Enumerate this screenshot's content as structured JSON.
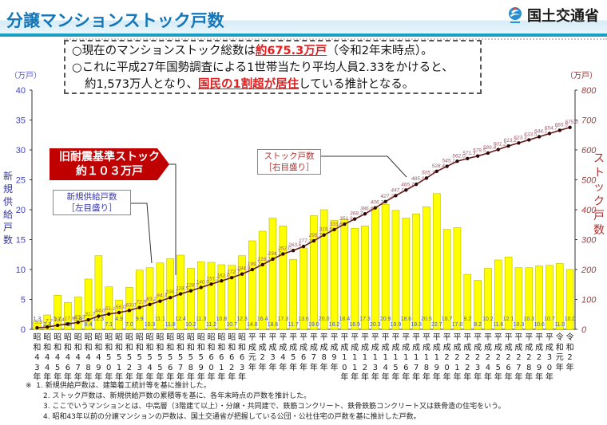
{
  "header": {
    "title": "分譲マンションストック戸数",
    "ministry": "国土交通省"
  },
  "summary": {
    "line1_prefix": "○現在のマンションストック総数は",
    "line1_highlight": "約675.3万戸",
    "line1_suffix": "（令和2年末時点）。",
    "line2": "○これに平成27年国勢調査による1世帯当たり平均人員2.33をかけると、",
    "line3_prefix": "約1,573万人となり、",
    "line3_highlight": "国民の1割超が居住",
    "line3_suffix": "している推計となる。"
  },
  "annotations": {
    "old_standard_line1": "旧耐震基準ストック",
    "old_standard_line2": "約１０３万戸",
    "new_supply_line1": "新規供給戸数",
    "new_supply_line2": "［左目盛り］",
    "stock_line1": "ストック戸数",
    "stock_line2": "［右目盛り］"
  },
  "axes": {
    "left_unit": "（万戸）",
    "right_unit": "（万戸）",
    "left_label": "新規供給戸数",
    "right_label": "ストック戸数",
    "left_ticks": [
      "0",
      "5",
      "10",
      "15",
      "20",
      "25",
      "30",
      "35",
      "40"
    ],
    "right_ticks": [
      "0",
      "100",
      "200",
      "300",
      "400",
      "500",
      "600",
      "700",
      "800"
    ]
  },
  "notes": {
    "mark": "※",
    "n1": "1. 新規供給戸数は、建築着工統計等を基に推計した。",
    "n2": "2. ストック戸数は、新規供給戸数の累積等を基に、各年末時点の戸数を推計した。",
    "n3": "3. ここでいうマンションとは、中高層（3階建て以上）・分譲・共同建で、鉄筋コンクリート、鉄骨鉄筋コンクリート又は鉄骨造の住宅をいう。",
    "n4": "4. 昭和43年以前の分譲マンションの戸数は、国土交通省が把握している公団・公社住宅の戸数を基に推計した戸数。"
  },
  "colors": {
    "title": "#1576b8",
    "bar": "#ffff00",
    "bar_border": "#b8b800",
    "stock_line": "#6b1c1c",
    "highlight_red": "#e02020",
    "old_standard_box": "#c00000"
  },
  "chart_data": {
    "type": "bar+line",
    "title": "分譲マンションストック戸数",
    "xlabel": "",
    "ylabel": "新規供給戸数（万戸）",
    "y2label": "ストック戸数（万戸）",
    "ylim": [
      0,
      40
    ],
    "y2lim": [
      0,
      800
    ],
    "grid": false,
    "categories": [
      [
        "昭",
        "和",
        "4",
        "3",
        "年"
      ],
      [
        "昭",
        "和",
        "4",
        "4",
        "年"
      ],
      [
        "昭",
        "和",
        "4",
        "5",
        "年"
      ],
      [
        "昭",
        "和",
        "4",
        "6",
        "年"
      ],
      [
        "昭",
        "和",
        "4",
        "7",
        "年"
      ],
      [
        "昭",
        "和",
        "4",
        "8",
        "年"
      ],
      [
        "昭",
        "和",
        "4",
        "9",
        "年"
      ],
      [
        "昭",
        "和",
        "5",
        "0",
        "年"
      ],
      [
        "昭",
        "和",
        "5",
        "1",
        "年"
      ],
      [
        "昭",
        "和",
        "5",
        "2",
        "年"
      ],
      [
        "昭",
        "和",
        "5",
        "3",
        "年"
      ],
      [
        "昭",
        "和",
        "5",
        "4",
        "年"
      ],
      [
        "昭",
        "和",
        "5",
        "5",
        "年"
      ],
      [
        "昭",
        "和",
        "5",
        "6",
        "年"
      ],
      [
        "昭",
        "和",
        "5",
        "7",
        "年"
      ],
      [
        "昭",
        "和",
        "5",
        "8",
        "年"
      ],
      [
        "昭",
        "和",
        "5",
        "9",
        "年"
      ],
      [
        "昭",
        "和",
        "6",
        "0",
        "年"
      ],
      [
        "昭",
        "和",
        "6",
        "1",
        "年"
      ],
      [
        "昭",
        "和",
        "6",
        "2",
        "年"
      ],
      [
        "昭",
        "和",
        "6",
        "3",
        "年"
      ],
      [
        "平",
        "成",
        "元",
        "年",
        ""
      ],
      [
        "平",
        "成",
        "2",
        "年",
        ""
      ],
      [
        "平",
        "成",
        "3",
        "年",
        ""
      ],
      [
        "平",
        "成",
        "4",
        "年",
        ""
      ],
      [
        "平",
        "成",
        "5",
        "年",
        ""
      ],
      [
        "平",
        "成",
        "6",
        "年",
        ""
      ],
      [
        "平",
        "成",
        "7",
        "年",
        ""
      ],
      [
        "平",
        "成",
        "8",
        "年",
        ""
      ],
      [
        "平",
        "成",
        "9",
        "年",
        ""
      ],
      [
        "平",
        "成",
        "1",
        "0",
        "年"
      ],
      [
        "平",
        "成",
        "1",
        "1",
        "年"
      ],
      [
        "平",
        "成",
        "1",
        "2",
        "年"
      ],
      [
        "平",
        "成",
        "1",
        "3",
        "年"
      ],
      [
        "平",
        "成",
        "1",
        "4",
        "年"
      ],
      [
        "平",
        "成",
        "1",
        "5",
        "年"
      ],
      [
        "平",
        "成",
        "1",
        "6",
        "年"
      ],
      [
        "平",
        "成",
        "1",
        "7",
        "年"
      ],
      [
        "平",
        "成",
        "1",
        "8",
        "年"
      ],
      [
        "平",
        "成",
        "1",
        "9",
        "年"
      ],
      [
        "平",
        "成",
        "2",
        "0",
        "年"
      ],
      [
        "平",
        "成",
        "2",
        "1",
        "年"
      ],
      [
        "平",
        "成",
        "2",
        "2",
        "年"
      ],
      [
        "平",
        "成",
        "2",
        "3",
        "年"
      ],
      [
        "平",
        "成",
        "2",
        "4",
        "年"
      ],
      [
        "平",
        "成",
        "2",
        "5",
        "年"
      ],
      [
        "平",
        "成",
        "2",
        "6",
        "年"
      ],
      [
        "平",
        "成",
        "2",
        "7",
        "年"
      ],
      [
        "平",
        "成",
        "2",
        "8",
        "年"
      ],
      [
        "平",
        "成",
        "2",
        "9",
        "年"
      ],
      [
        "平",
        "成",
        "3",
        "0",
        "年"
      ],
      [
        "令",
        "和",
        "元",
        "年",
        ""
      ],
      [
        "令",
        "和",
        "2",
        "年",
        ""
      ]
    ],
    "category_names": [
      "昭和43年",
      "昭和44年",
      "昭和45年",
      "昭和46年",
      "昭和47年",
      "昭和48年",
      "昭和49年",
      "昭和50年",
      "昭和51年",
      "昭和52年",
      "昭和53年",
      "昭和54年",
      "昭和55年",
      "昭和56年",
      "昭和57年",
      "昭和58年",
      "昭和59年",
      "昭和60年",
      "昭和61年",
      "昭和62年",
      "昭和63年",
      "平成元年",
      "平成2年",
      "平成3年",
      "平成4年",
      "平成5年",
      "平成6年",
      "平成7年",
      "平成8年",
      "平成9年",
      "平成10年",
      "平成11年",
      "平成12年",
      "平成13年",
      "平成14年",
      "平成15年",
      "平成16年",
      "平成17年",
      "平成18年",
      "平成19年",
      "平成20年",
      "平成21年",
      "平成22年",
      "平成23年",
      "平成24年",
      "平成25年",
      "平成26年",
      "平成27年",
      "平成28年",
      "平成29年",
      "平成30年",
      "令和元年",
      "令和2年"
    ],
    "series": [
      {
        "name": "新規供給戸数［左目盛り］",
        "type": "bar",
        "axis": "left",
        "values": [
          1.3,
          2.4,
          5.7,
          4.5,
          5.4,
          8.4,
          12.3,
          7.1,
          4.9,
          7.0,
          9.9,
          10.3,
          11.1,
          11.8,
          12.4,
          10.2,
          11.3,
          11.2,
          10.8,
          10.7,
          12.3,
          14.8,
          16.4,
          18.6,
          17.3,
          11.7,
          13.6,
          19.0,
          20.0,
          18.2,
          18.4,
          16.9,
          17.3,
          20.3,
          20.9,
          19.9,
          18.6,
          19.3,
          20.5,
          22.7,
          16.7,
          17.0,
          9.2,
          8.2,
          10.2,
          11.6,
          12.1,
          10.3,
          10.3,
          10.6,
          10.7,
          11.0,
          10.0
        ]
      },
      {
        "name": "ストック戸数［右目盛り］",
        "type": "line",
        "axis": "right",
        "values": [
          5.3,
          7.7,
          13.4,
          17.9,
          23.3,
          31.7,
          44.0,
          51.1,
          56.0,
          63.0,
          72.9,
          83.2,
          94.3,
          106.1,
          118.5,
          128.7,
          140.0,
          151.2,
          162.0,
          172.7,
          184.9,
          199.7,
          216.1,
          234.7,
          252.0,
          263.6,
          277.2,
          295.7,
          315.5,
          333.6,
          351.9,
          368.7,
          386.0,
          406.3,
          427.2,
          447.1,
          465.7,
          485.0,
          505.7,
          528.4,
          545.1,
          562.0,
          571.3,
          579.5,
          589.4,
          601.2,
          613.2,
          623.3,
          633.5,
          644.1,
          654.7,
          665.5,
          675.3
        ]
      }
    ],
    "annotations": [
      "旧耐震基準ストック 約１０３万戸",
      "新規供給戸数［左目盛り］",
      "ストック戸数［右目盛り］"
    ]
  }
}
